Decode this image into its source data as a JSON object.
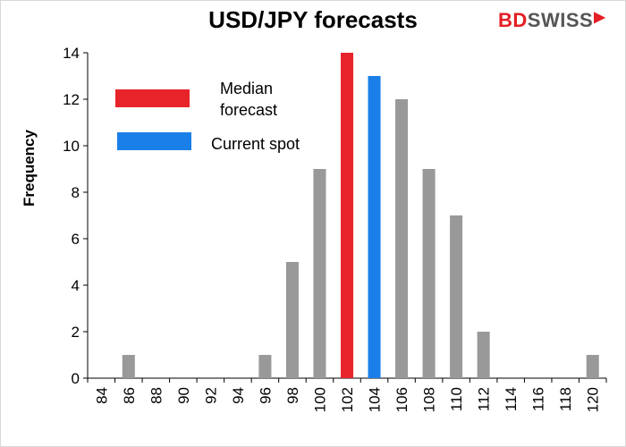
{
  "chart_data": {
    "type": "bar",
    "title": "USD/JPY forecasts",
    "xlabel": "",
    "ylabel": "Frequency",
    "categories": [
      "84",
      "86",
      "88",
      "90",
      "92",
      "94",
      "96",
      "98",
      "100",
      "102",
      "104",
      "106",
      "108",
      "110",
      "112",
      "114",
      "116",
      "118",
      "120"
    ],
    "values": [
      0,
      1,
      0,
      0,
      0,
      0,
      1,
      5,
      9,
      14,
      13,
      12,
      9,
      7,
      2,
      0,
      0,
      0,
      1
    ],
    "ylim": [
      0,
      14
    ],
    "yticks": [
      0,
      2,
      4,
      6,
      8,
      10,
      12,
      14
    ],
    "grid": false,
    "colors": {
      "default": "#999999",
      "median": "#e8242b",
      "spot": "#1a7fe8"
    },
    "highlights": {
      "median_category": "102",
      "spot_category": "104"
    },
    "legend": {
      "position": "top-left",
      "entries": [
        {
          "label": "Median\nforecast",
          "line1": "Median",
          "line2": "forecast",
          "color": "#e8242b"
        },
        {
          "label": "Current spot",
          "color": "#1a7fe8"
        }
      ]
    }
  },
  "logo": {
    "part1": "BD",
    "part2": "SWISS",
    "mark": "▶"
  }
}
